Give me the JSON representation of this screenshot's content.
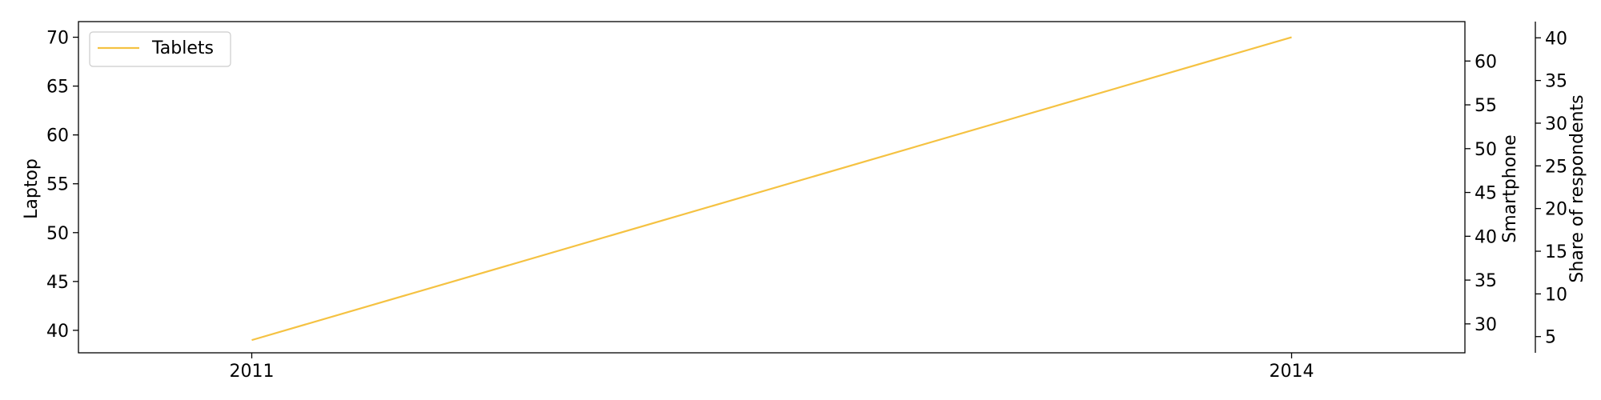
{
  "chart_data": {
    "type": "line",
    "x": [
      2011,
      2014
    ],
    "x_tick_labels": [
      "2011",
      "2014"
    ],
    "xlim": [
      2010.5,
      2014.5
    ],
    "axes": {
      "left": {
        "label": "Laptop",
        "ylim": [
          37.7,
          71.6
        ],
        "ticks": [
          40,
          45,
          50,
          55,
          60,
          65,
          70
        ]
      },
      "right": {
        "label": "Smartphone",
        "ylim": [
          26.7,
          64.5
        ],
        "ticks": [
          30,
          35,
          40,
          45,
          50,
          55,
          60
        ]
      },
      "right_outer": {
        "label": "Share of respondents",
        "ylim": [
          3.1,
          41.9
        ],
        "ticks": [
          5,
          10,
          15,
          20,
          25,
          30,
          35,
          40
        ]
      }
    },
    "series": [
      {
        "name": "Tablets",
        "axis": "left",
        "color": "#f5c242",
        "x": [
          2011,
          2014
        ],
        "values": [
          39,
          70
        ]
      }
    ],
    "legend": {
      "placement": "top-left",
      "entries": [
        "Tablets"
      ]
    },
    "grid": false
  }
}
